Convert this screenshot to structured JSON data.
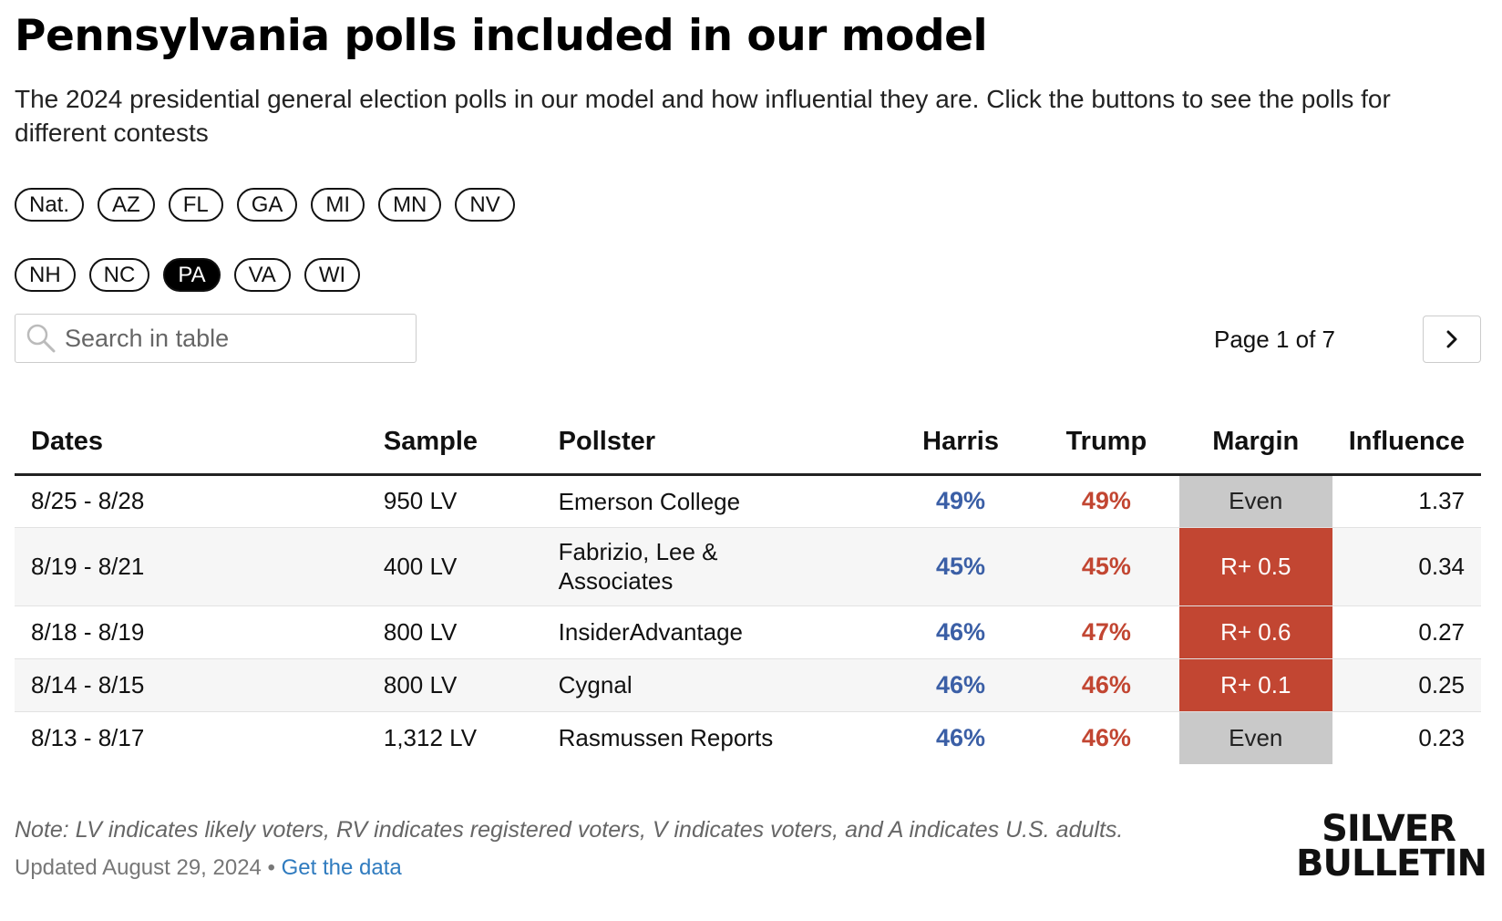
{
  "header": {
    "title": "Pennsylvania polls included in our model",
    "subtitle": "The 2024 presidential general election polls in our model and how influential they are. Click the buttons to see the polls for different contests"
  },
  "contests": {
    "row1": [
      {
        "label": "Nat.",
        "active": false
      },
      {
        "label": "AZ",
        "active": false
      },
      {
        "label": "FL",
        "active": false
      },
      {
        "label": "GA",
        "active": false
      },
      {
        "label": "MI",
        "active": false
      },
      {
        "label": "MN",
        "active": false
      },
      {
        "label": "NV",
        "active": false
      }
    ],
    "row2": [
      {
        "label": "NH",
        "active": false
      },
      {
        "label": "NC",
        "active": false
      },
      {
        "label": "PA",
        "active": true
      },
      {
        "label": "VA",
        "active": false
      },
      {
        "label": "WI",
        "active": false
      }
    ]
  },
  "search": {
    "placeholder": "Search in table",
    "value": "",
    "icon": "search-icon"
  },
  "pager": {
    "text": "Page 1 of 7",
    "icon": "chevron-right-icon"
  },
  "table": {
    "columns": {
      "dates": "Dates",
      "sample": "Sample",
      "pollster": "Pollster",
      "harris": "Harris",
      "trump": "Trump",
      "margin": "Margin",
      "influence": "Influence"
    },
    "rows": [
      {
        "dates": "8/25 - 8/28",
        "sample": "950 LV",
        "pollster": "Emerson College",
        "harris": "49%",
        "trump": "49%",
        "margin": "Even",
        "margin_type": "even",
        "influence": "1.37"
      },
      {
        "dates": "8/19 - 8/21",
        "sample": "400 LV",
        "pollster": "Fabrizio, Lee & Associates",
        "harris": "45%",
        "trump": "45%",
        "margin": "R+ 0.5",
        "margin_type": "rep",
        "influence": "0.34"
      },
      {
        "dates": "8/18 - 8/19",
        "sample": "800 LV",
        "pollster": "InsiderAdvantage",
        "harris": "46%",
        "trump": "47%",
        "margin": "R+ 0.6",
        "margin_type": "rep",
        "influence": "0.27"
      },
      {
        "dates": "8/14 - 8/15",
        "sample": "800 LV",
        "pollster": "Cygnal",
        "harris": "46%",
        "trump": "46%",
        "margin": "R+ 0.1",
        "margin_type": "rep",
        "influence": "0.25"
      },
      {
        "dates": "8/13 - 8/17",
        "sample": "1,312 LV",
        "pollster": "Rasmussen Reports",
        "harris": "46%",
        "trump": "46%",
        "margin": "Even",
        "margin_type": "even",
        "influence": "0.23"
      }
    ]
  },
  "footer": {
    "note": "Note: LV indicates likely voters, RV indicates registered voters, V indicates voters, and A indicates U.S. adults.",
    "updated": "Updated August 29, 2024",
    "separator": " • ",
    "link": "Get the data"
  },
  "logo": {
    "line1": "SILVER",
    "line2": "BULLETIN"
  },
  "colors": {
    "harris": "#3b5fa6",
    "trump": "#c24632",
    "even": "#c9c9c9",
    "link": "#2f7bbf"
  }
}
